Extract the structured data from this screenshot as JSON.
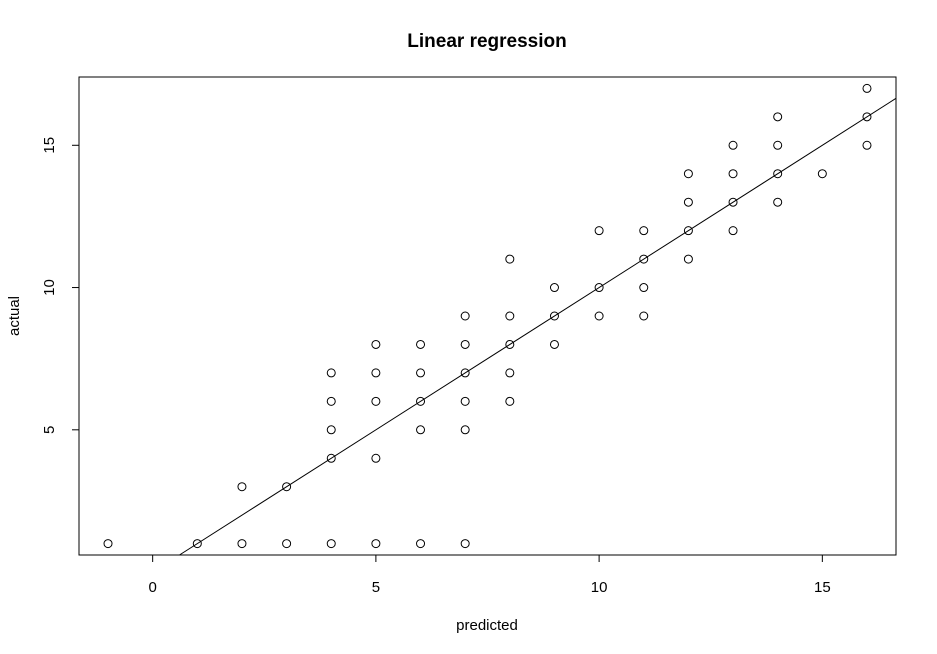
{
  "chart_data": {
    "type": "scatter",
    "title": "Linear regression",
    "xlabel": "predicted",
    "ylabel": "actual",
    "xlim": [
      -1.65,
      16.65
    ],
    "ylim": [
      0.6,
      17.4
    ],
    "xticks": [
      0,
      5,
      10,
      15
    ],
    "yticks": [
      5,
      10,
      15
    ],
    "grid": false,
    "legend": "none",
    "marker": "open-circle",
    "fit_line": {
      "intercept": 0,
      "slope": 1
    },
    "points": [
      [
        -1,
        1
      ],
      [
        1,
        1
      ],
      [
        2,
        1
      ],
      [
        2,
        3
      ],
      [
        3,
        1
      ],
      [
        3,
        3
      ],
      [
        4,
        1
      ],
      [
        4,
        4
      ],
      [
        4,
        5
      ],
      [
        4,
        6
      ],
      [
        4,
        7
      ],
      [
        5,
        1
      ],
      [
        5,
        4
      ],
      [
        5,
        6
      ],
      [
        5,
        7
      ],
      [
        5,
        8
      ],
      [
        6,
        1
      ],
      [
        6,
        5
      ],
      [
        6,
        6
      ],
      [
        6,
        7
      ],
      [
        6,
        8
      ],
      [
        7,
        1
      ],
      [
        7,
        5
      ],
      [
        7,
        6
      ],
      [
        7,
        7
      ],
      [
        7,
        8
      ],
      [
        7,
        9
      ],
      [
        8,
        6
      ],
      [
        8,
        7
      ],
      [
        8,
        8
      ],
      [
        8,
        9
      ],
      [
        8,
        11
      ],
      [
        9,
        8
      ],
      [
        9,
        9
      ],
      [
        9,
        10
      ],
      [
        10,
        9
      ],
      [
        10,
        10
      ],
      [
        10,
        12
      ],
      [
        11,
        9
      ],
      [
        11,
        10
      ],
      [
        11,
        11
      ],
      [
        11,
        12
      ],
      [
        12,
        11
      ],
      [
        12,
        12
      ],
      [
        12,
        13
      ],
      [
        12,
        14
      ],
      [
        13,
        12
      ],
      [
        13,
        13
      ],
      [
        13,
        14
      ],
      [
        13,
        15
      ],
      [
        14,
        13
      ],
      [
        14,
        14
      ],
      [
        14,
        15
      ],
      [
        14,
        16
      ],
      [
        15,
        14
      ],
      [
        16,
        15
      ],
      [
        16,
        16
      ],
      [
        16,
        17
      ]
    ]
  }
}
